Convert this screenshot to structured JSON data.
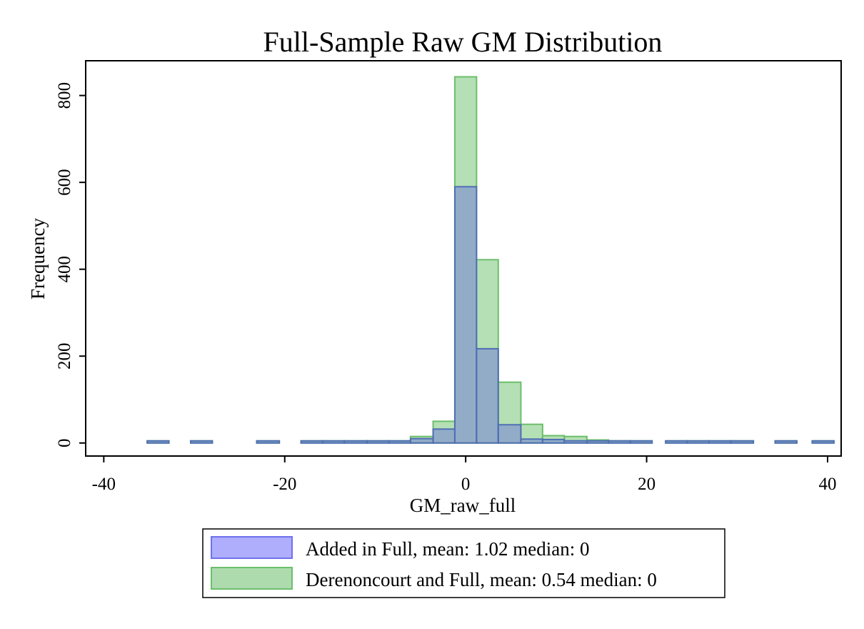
{
  "chart_data": {
    "type": "histogram",
    "title": "Full-Sample Raw GM Distribution",
    "xlabel": "GM_raw_full",
    "ylabel": "Frequency",
    "xlim": [
      -42,
      41.5
    ],
    "ylim": [
      -30,
      880
    ],
    "xticks": [
      -40,
      -20,
      0,
      20,
      40
    ],
    "yticks": [
      0,
      200,
      400,
      600,
      800
    ],
    "tick_labels": {
      "x": [
        "-40",
        "-20",
        "0",
        "20",
        "40"
      ],
      "y": [
        "0",
        "200",
        "400",
        "600",
        "800"
      ]
    },
    "grid": false,
    "legend_position": "bottom",
    "bin_width": 2.43,
    "series": [
      {
        "name": "Added in Full, mean: 1.02 median:  0",
        "color": "#8f8fff",
        "bins": [
          {
            "x0": -35.2,
            "x1": -32.8,
            "count": 2
          },
          {
            "x0": -30.4,
            "x1": -28.0,
            "count": 2
          },
          {
            "x0": -23.1,
            "x1": -20.6,
            "count": 1
          },
          {
            "x0": -18.2,
            "x1": -15.8,
            "count": 1
          },
          {
            "x0": -15.8,
            "x1": -13.4,
            "count": 1
          },
          {
            "x0": -13.4,
            "x1": -10.9,
            "count": 1
          },
          {
            "x0": -10.9,
            "x1": -8.5,
            "count": 2
          },
          {
            "x0": -8.5,
            "x1": -6.1,
            "count": 3
          },
          {
            "x0": -6.1,
            "x1": -3.6,
            "count": 10
          },
          {
            "x0": -3.6,
            "x1": -1.2,
            "count": 32
          },
          {
            "x0": -1.2,
            "x1": 1.2,
            "count": 590
          },
          {
            "x0": 1.2,
            "x1": 3.6,
            "count": 217
          },
          {
            "x0": 3.6,
            "x1": 6.1,
            "count": 42
          },
          {
            "x0": 6.1,
            "x1": 8.5,
            "count": 9
          },
          {
            "x0": 8.5,
            "x1": 10.9,
            "count": 8
          },
          {
            "x0": 10.9,
            "x1": 13.4,
            "count": 5
          },
          {
            "x0": 13.4,
            "x1": 15.8,
            "count": 3
          },
          {
            "x0": 15.8,
            "x1": 18.2,
            "count": 2
          },
          {
            "x0": 18.2,
            "x1": 20.6,
            "count": 1
          },
          {
            "x0": 22.1,
            "x1": 24.5,
            "count": 1
          },
          {
            "x0": 24.5,
            "x1": 26.9,
            "count": 1
          },
          {
            "x0": 26.9,
            "x1": 29.3,
            "count": 1
          },
          {
            "x0": 29.3,
            "x1": 31.8,
            "count": 1
          },
          {
            "x0": 34.2,
            "x1": 36.6,
            "count": 1
          },
          {
            "x0": 38.3,
            "x1": 40.7,
            "count": 1
          }
        ]
      },
      {
        "name": "Derenoncourt and Full, mean: 0.54 median:  0",
        "color": "#8ecf8e",
        "bins": [
          {
            "x0": -35.2,
            "x1": -32.8,
            "count": 2
          },
          {
            "x0": -30.4,
            "x1": -28.0,
            "count": 2
          },
          {
            "x0": -23.1,
            "x1": -20.6,
            "count": 2
          },
          {
            "x0": -18.2,
            "x1": -15.8,
            "count": 2
          },
          {
            "x0": -15.8,
            "x1": -13.4,
            "count": 2
          },
          {
            "x0": -13.4,
            "x1": -10.9,
            "count": 2
          },
          {
            "x0": -10.9,
            "x1": -8.5,
            "count": 3
          },
          {
            "x0": -8.5,
            "x1": -6.1,
            "count": 4
          },
          {
            "x0": -6.1,
            "x1": -3.6,
            "count": 15
          },
          {
            "x0": -3.6,
            "x1": -1.2,
            "count": 50
          },
          {
            "x0": -1.2,
            "x1": 1.2,
            "count": 843
          },
          {
            "x0": 1.2,
            "x1": 3.6,
            "count": 422
          },
          {
            "x0": 3.6,
            "x1": 6.1,
            "count": 140
          },
          {
            "x0": 6.1,
            "x1": 8.5,
            "count": 43
          },
          {
            "x0": 8.5,
            "x1": 10.9,
            "count": 17
          },
          {
            "x0": 10.9,
            "x1": 13.4,
            "count": 15
          },
          {
            "x0": 13.4,
            "x1": 15.8,
            "count": 7
          },
          {
            "x0": 15.8,
            "x1": 18.2,
            "count": 5
          },
          {
            "x0": 18.2,
            "x1": 20.6,
            "count": 2
          },
          {
            "x0": 22.1,
            "x1": 24.5,
            "count": 2
          },
          {
            "x0": 24.5,
            "x1": 26.9,
            "count": 2
          },
          {
            "x0": 26.9,
            "x1": 29.3,
            "count": 2
          },
          {
            "x0": 29.3,
            "x1": 31.8,
            "count": 2
          },
          {
            "x0": 34.2,
            "x1": 36.6,
            "count": 2
          },
          {
            "x0": 38.3,
            "x1": 40.7,
            "count": 2
          }
        ]
      }
    ]
  }
}
